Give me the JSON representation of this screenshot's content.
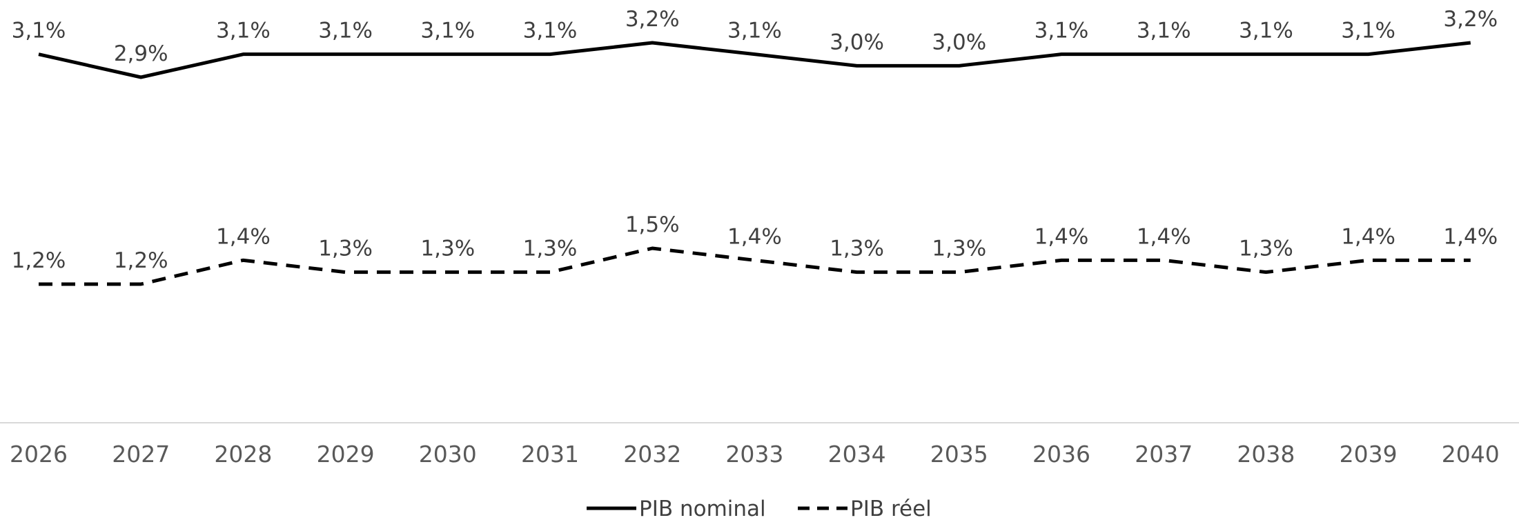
{
  "chart_data": {
    "type": "line",
    "title": "",
    "xlabel": "",
    "ylabel": "",
    "categories": [
      "2026",
      "2027",
      "2028",
      "2029",
      "2030",
      "2031",
      "2032",
      "2033",
      "2034",
      "2035",
      "2036",
      "2037",
      "2038",
      "2039",
      "2040"
    ],
    "series": [
      {
        "name": "PIB nominal",
        "line_style": "solid",
        "color": "#000000",
        "values": [
          3.1,
          2.9,
          3.1,
          3.1,
          3.1,
          3.1,
          3.2,
          3.1,
          3.0,
          3.0,
          3.1,
          3.1,
          3.1,
          3.1,
          3.2
        ],
        "labels": [
          "3,1%",
          "2,9%",
          "3,1%",
          "3,1%",
          "3,1%",
          "3,1%",
          "3,2%",
          "3,1%",
          "3,0%",
          "3,0%",
          "3,1%",
          "3,1%",
          "3,1%",
          "3,1%",
          "3,2%"
        ]
      },
      {
        "name": "PIB réel",
        "line_style": "dashed",
        "color": "#000000",
        "values": [
          1.2,
          1.2,
          1.4,
          1.3,
          1.3,
          1.3,
          1.5,
          1.4,
          1.3,
          1.3,
          1.4,
          1.4,
          1.3,
          1.4,
          1.4
        ],
        "labels": [
          "1,2%",
          "1,2%",
          "1,4%",
          "1,3%",
          "1,3%",
          "1,3%",
          "1,5%",
          "1,4%",
          "1,3%",
          "1,3%",
          "1,4%",
          "1,4%",
          "1,3%",
          "1,4%",
          "1,4%"
        ]
      }
    ],
    "legend_position": "bottom",
    "grid": false,
    "y_axis_visible": false
  }
}
